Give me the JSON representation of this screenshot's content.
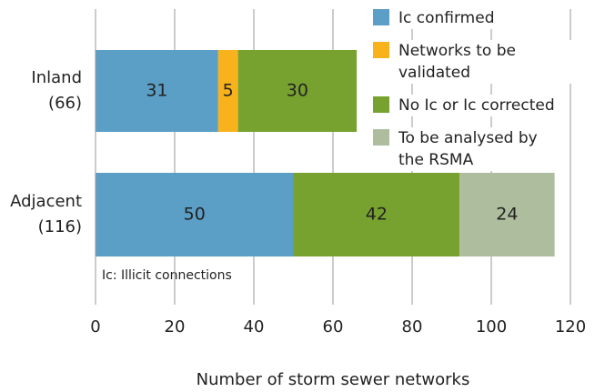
{
  "chart_data": {
    "type": "stacked_barh",
    "categories": [
      [
        "Inland",
        "(66)"
      ],
      [
        "Adjacent",
        "(116)"
      ]
    ],
    "series": [
      {
        "name": "Ic confirmed",
        "color": "#5b9ec6",
        "values": [
          31,
          50
        ]
      },
      {
        "name": "Networks to be validated",
        "color": "#f7b21c",
        "values": [
          5,
          null
        ]
      },
      {
        "name": "No Ic or Ic corrected",
        "color": "#77a22f",
        "values": [
          30,
          42
        ]
      },
      {
        "name": "To be analysed by the RSMA",
        "color": "#adbd9d",
        "values": [
          null,
          24
        ]
      }
    ],
    "xlim": [
      0,
      120
    ],
    "xticks": [
      0,
      20,
      40,
      60,
      80,
      100,
      120
    ],
    "grid": true,
    "xlabel": "Number of storm sewer networks",
    "annotation": "Ic: Illicit connections",
    "legend": "top-right"
  }
}
